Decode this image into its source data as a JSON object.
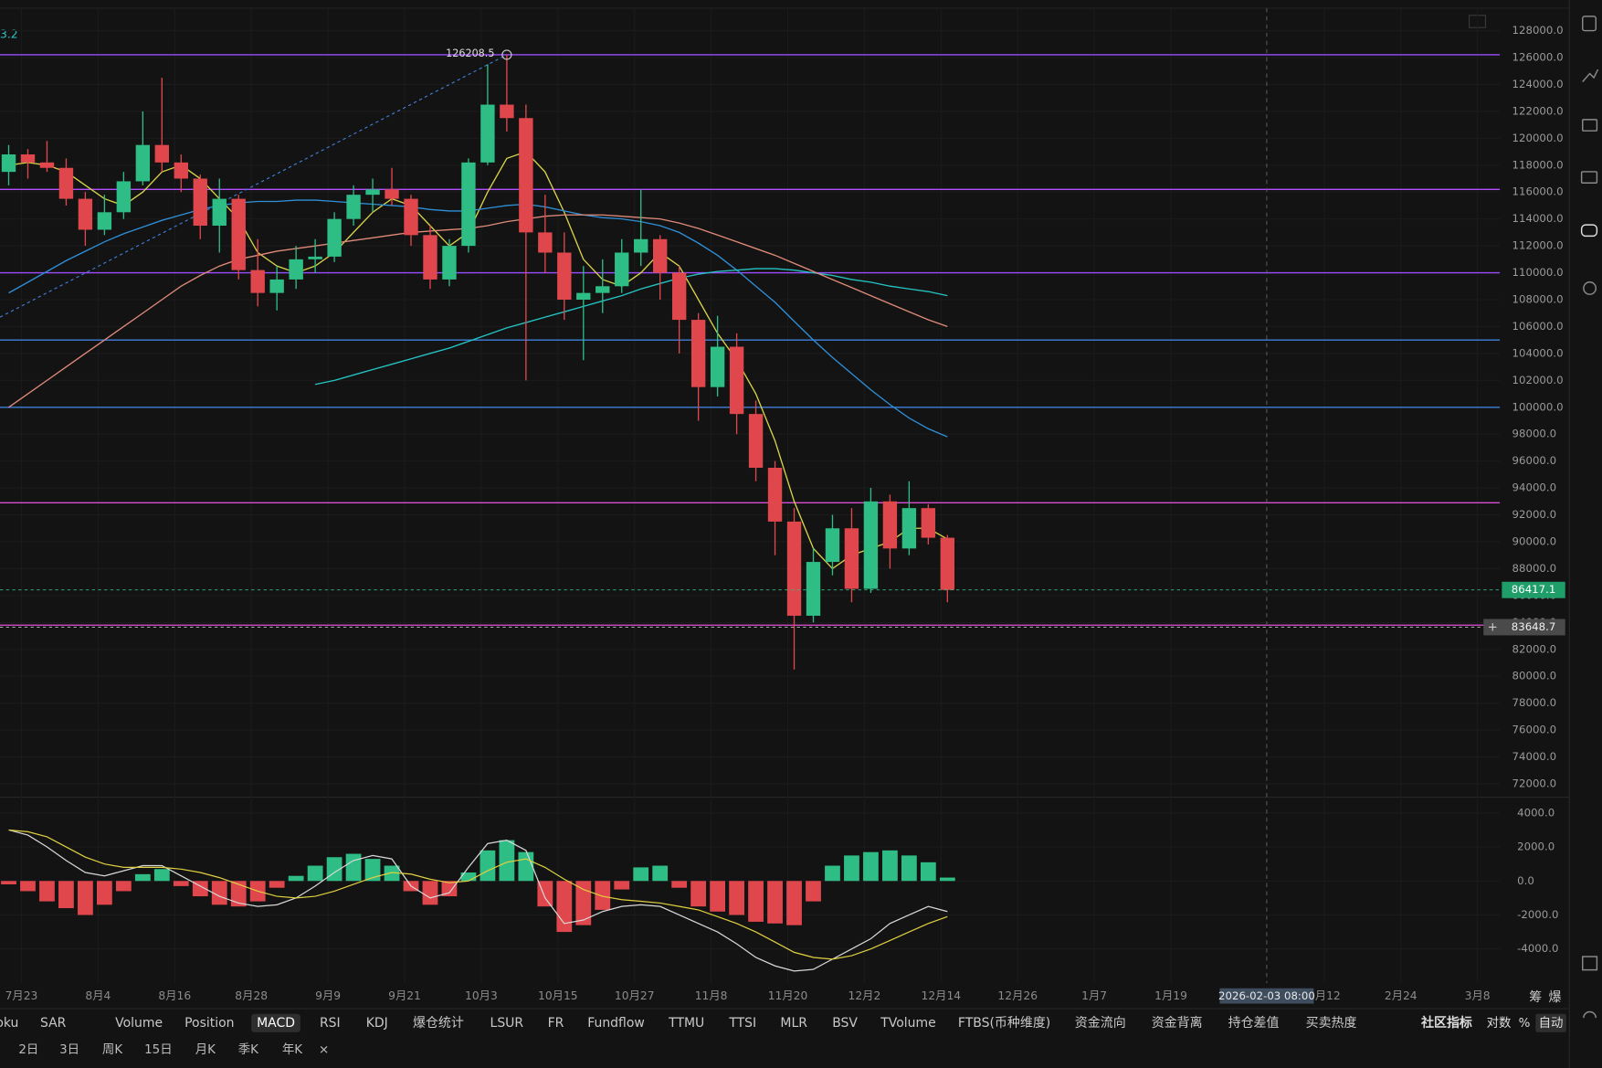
{
  "chart_data": [
    {
      "type": "candlestick",
      "indicator_label": "3.2",
      "x": [
        -2,
        1,
        4,
        7,
        10,
        13,
        16,
        19,
        22,
        25,
        28,
        31,
        34,
        37,
        40,
        43,
        46,
        49,
        52,
        55,
        58,
        61,
        64,
        67,
        70,
        73,
        76,
        79,
        82,
        85,
        88,
        91,
        94,
        97,
        100,
        103,
        106,
        109,
        112,
        115,
        118,
        121,
        124,
        127,
        130,
        133,
        136,
        139,
        142,
        145
      ],
      "open": [
        117500,
        118800,
        118200,
        117800,
        115500,
        113200,
        114500,
        116800,
        119500,
        118200,
        117000,
        113500,
        115500,
        110200,
        108500,
        109500,
        111000,
        111200,
        114000,
        115800,
        116200,
        115500,
        112800,
        109500,
        112000,
        118200,
        122500,
        121500,
        113000,
        111500,
        108000,
        108500,
        109000,
        111500,
        112500,
        110000,
        106500,
        101500,
        104500,
        99500,
        95500,
        91500,
        84500,
        88500,
        91000,
        86500,
        93000,
        89500,
        92500,
        90300
      ],
      "high": [
        119500,
        119200,
        119800,
        118500,
        116000,
        115800,
        117500,
        122000,
        124500,
        118800,
        117300,
        117000,
        115800,
        112500,
        110500,
        112000,
        112500,
        114500,
        116500,
        117000,
        117800,
        115800,
        113500,
        112500,
        118500,
        125500,
        126208.5,
        122500,
        115800,
        113000,
        110500,
        111000,
        112500,
        116200,
        112800,
        110500,
        107000,
        106800,
        105500,
        100500,
        96000,
        92500,
        89500,
        92000,
        92500,
        94000,
        93500,
        94500,
        92800,
        90500
      ],
      "low": [
        116500,
        117000,
        117500,
        115000,
        112000,
        112800,
        114000,
        116500,
        117500,
        116000,
        112500,
        111500,
        109500,
        107500,
        107200,
        108800,
        110000,
        110800,
        113500,
        114500,
        115000,
        112000,
        108800,
        109000,
        111500,
        118000,
        120500,
        102000,
        110000,
        106500,
        103500,
        107000,
        108500,
        110500,
        108000,
        104000,
        99000,
        100800,
        98000,
        94500,
        89000,
        80500,
        84000,
        87500,
        85500,
        86200,
        88000,
        89000,
        89800,
        85500
      ],
      "close": [
        118800,
        118200,
        117800,
        115500,
        113200,
        114500,
        116800,
        119500,
        118200,
        117000,
        113500,
        115500,
        110200,
        108500,
        109500,
        111000,
        111200,
        114000,
        115800,
        116200,
        115500,
        112800,
        109500,
        112000,
        118200,
        122500,
        121500,
        113000,
        111500,
        108000,
        108500,
        109000,
        111500,
        112500,
        110000,
        106500,
        101500,
        104500,
        99500,
        95500,
        91500,
        84500,
        88500,
        91000,
        86500,
        93000,
        89500,
        92500,
        90300,
        86417.1
      ],
      "up_color": "#2ebd85",
      "down_color": "#e0474c",
      "peak_index": 26,
      "moving_averages": [
        {
          "color": "#d8d24a",
          "values": [
            118000,
            118200,
            118000,
            117500,
            116500,
            115500,
            115000,
            116000,
            117500,
            118000,
            117000,
            115500,
            114000,
            111500,
            110500,
            110000,
            110500,
            111500,
            113000,
            114500,
            115500,
            115000,
            113500,
            112000,
            113000,
            116000,
            118500,
            119000,
            117500,
            114500,
            111000,
            109500,
            109000,
            110000,
            111500,
            110500,
            108000,
            105500,
            103500,
            101000,
            97500,
            93000,
            89500,
            88000,
            89000,
            89500,
            90000,
            91000,
            91000,
            90200
          ]
        },
        {
          "color": "#2f8fd6",
          "values": [
            108500,
            109300,
            110100,
            110900,
            111600,
            112300,
            112900,
            113400,
            113900,
            114300,
            114700,
            115000,
            115200,
            115300,
            115300,
            115400,
            115400,
            115300,
            115200,
            115100,
            115000,
            114900,
            114700,
            114600,
            114600,
            114800,
            115000,
            115100,
            114900,
            114600,
            114300,
            114100,
            114000,
            113800,
            113500,
            113000,
            112200,
            111300,
            110200,
            109000,
            107800,
            106400,
            105000,
            103700,
            102500,
            101300,
            100200,
            99200,
            98400,
            97800
          ]
        },
        {
          "color": "#25c4c4",
          "values": [
            null,
            null,
            null,
            null,
            null,
            null,
            null,
            null,
            null,
            null,
            null,
            null,
            null,
            null,
            null,
            null,
            101700,
            102000,
            102400,
            102800,
            103200,
            103600,
            104000,
            104400,
            104900,
            105400,
            105900,
            106300,
            106700,
            107100,
            107500,
            107900,
            108300,
            108800,
            109200,
            109600,
            109900,
            110100,
            110200,
            110300,
            110300,
            110200,
            110000,
            109800,
            109500,
            109300,
            109000,
            108800,
            108600,
            108300
          ]
        },
        {
          "color": "#e08a7a",
          "values": [
            100000,
            101000,
            102000,
            103000,
            104000,
            105000,
            106000,
            107000,
            108000,
            109000,
            109800,
            110500,
            111000,
            111300,
            111600,
            111800,
            112000,
            112200,
            112400,
            112600,
            112800,
            113000,
            113100,
            113200,
            113300,
            113500,
            113800,
            114000,
            114200,
            114300,
            114300,
            114300,
            114200,
            114100,
            114000,
            113700,
            113300,
            112800,
            112300,
            111800,
            111300,
            110700,
            110100,
            109500,
            108900,
            108300,
            107700,
            107100,
            106500,
            106000
          ]
        }
      ],
      "hlines": [
        {
          "value": 126208.5,
          "color": "#9a4dff"
        },
        {
          "value": 116200,
          "color": "#b44dff"
        },
        {
          "value": 110000,
          "color": "#9a4dff"
        },
        {
          "value": 105000,
          "color": "#3f80d9"
        },
        {
          "value": 100000,
          "color": "#3f80d9"
        },
        {
          "value": 92900,
          "color": "#d64fd0"
        },
        {
          "value": 83800,
          "color": "#e055d8"
        }
      ],
      "trendline": {
        "x": [
          -3.36,
          76
        ],
        "y": [
          106700,
          126208.5
        ]
      },
      "crosshair": {
        "x": {
          "value": 195,
          "label": "2026-02-03 08:00"
        },
        "y": 83648.7
      },
      "xlim": [
        -3.36,
        231.5
      ],
      "ylim": [
        71010,
        130280
      ],
      "xticks": [
        {
          "value": 0,
          "label": "7月23"
        },
        {
          "value": 12,
          "label": "8月4"
        },
        {
          "value": 24,
          "label": "8月16"
        },
        {
          "value": 36,
          "label": "8月28"
        },
        {
          "value": 48,
          "label": "9月9"
        },
        {
          "value": 60,
          "label": "9月21"
        },
        {
          "value": 72,
          "label": "10月3"
        },
        {
          "value": 84,
          "label": "10月15"
        },
        {
          "value": 96,
          "label": "10月27"
        },
        {
          "value": 108,
          "label": "11月8"
        },
        {
          "value": 120,
          "label": "11月20"
        },
        {
          "value": 132,
          "label": "12月2"
        },
        {
          "value": 144,
          "label": "12月14"
        },
        {
          "value": 156,
          "label": "12月26"
        },
        {
          "value": 168,
          "label": "1月7"
        },
        {
          "value": 180,
          "label": "1月19"
        },
        {
          "value": 204,
          "label": "2月12"
        },
        {
          "value": 216,
          "label": "2月24"
        },
        {
          "value": 228,
          "label": "3月8"
        }
      ],
      "yticks": [
        {
          "value": 72000,
          "label": "72000.0"
        },
        {
          "value": 74000,
          "label": "74000.0"
        },
        {
          "value": 76000,
          "label": "76000.0"
        },
        {
          "value": 78000,
          "label": "78000.0"
        },
        {
          "value": 80000,
          "label": "80000.0"
        },
        {
          "value": 82000,
          "label": "82000.0"
        },
        {
          "value": 84000,
          "label": "84000.0"
        },
        {
          "value": 86000,
          "label": "86000.0"
        },
        {
          "value": 88000,
          "label": "88000.0"
        },
        {
          "value": 90000,
          "label": "90000.0"
        },
        {
          "value": 92000,
          "label": "92000.0"
        },
        {
          "value": 94000,
          "label": "94000.0"
        },
        {
          "value": 96000,
          "label": "96000.0"
        },
        {
          "value": 98000,
          "label": "98000.0"
        },
        {
          "value": 100000,
          "label": "100000.0"
        },
        {
          "value": 102000,
          "label": "102000.0"
        },
        {
          "value": 104000,
          "label": "104000.0"
        },
        {
          "value": 106000,
          "label": "106000.0"
        },
        {
          "value": 108000,
          "label": "108000.0"
        },
        {
          "value": 110000,
          "label": "110000.0"
        },
        {
          "value": 112000,
          "label": "112000.0"
        },
        {
          "value": 114000,
          "label": "114000.0"
        },
        {
          "value": 116000,
          "label": "116000.0"
        },
        {
          "value": 118000,
          "label": "118000.0"
        },
        {
          "value": 120000,
          "label": "120000.0"
        },
        {
          "value": 122000,
          "label": "122000.0"
        },
        {
          "value": 124000,
          "label": "124000.0"
        },
        {
          "value": 126000,
          "label": "126000.0"
        },
        {
          "value": 128000,
          "label": "128000.0"
        }
      ]
    },
    {
      "type": "macd",
      "x": [
        -2,
        1,
        4,
        7,
        10,
        13,
        16,
        19,
        22,
        25,
        28,
        31,
        34,
        37,
        40,
        43,
        46,
        49,
        52,
        55,
        58,
        61,
        64,
        67,
        70,
        73,
        76,
        79,
        82,
        85,
        88,
        91,
        94,
        97,
        100,
        103,
        106,
        109,
        112,
        115,
        118,
        121,
        124,
        127,
        130,
        133,
        136,
        139,
        142,
        145
      ],
      "histogram": [
        -200,
        -600,
        -1200,
        -1600,
        -2000,
        -1400,
        -600,
        400,
        700,
        -300,
        -900,
        -1400,
        -1500,
        -1200,
        -400,
        300,
        900,
        1400,
        1600,
        1300,
        900,
        -600,
        -1400,
        -900,
        500,
        1800,
        2400,
        1700,
        -1500,
        -3000,
        -2600,
        -1700,
        -500,
        800,
        900,
        -400,
        -1500,
        -1800,
        -2000,
        -2400,
        -2500,
        -2600,
        -1200,
        900,
        1500,
        1700,
        1800,
        1500,
        1100,
        200
      ],
      "dif": [
        3000,
        2700,
        2000,
        1200,
        500,
        300,
        600,
        900,
        900,
        300,
        -300,
        -900,
        -1300,
        -1500,
        -1400,
        -1000,
        -300,
        500,
        1200,
        1500,
        1300,
        -300,
        -1000,
        -700,
        800,
        2200,
        2400,
        1800,
        -1000,
        -2500,
        -2300,
        -1800,
        -1500,
        -1400,
        -1500,
        -2000,
        -2500,
        -3000,
        -3700,
        -4500,
        -5000,
        -5300,
        -5200,
        -4600,
        -4000,
        -3400,
        -2500,
        -2000,
        -1500,
        -1800
      ],
      "dea": [
        3000,
        2900,
        2600,
        2000,
        1400,
        1000,
        800,
        800,
        800,
        700,
        500,
        200,
        -200,
        -600,
        -900,
        -1000,
        -900,
        -600,
        -200,
        200,
        500,
        400,
        100,
        -100,
        0,
        600,
        1100,
        1300,
        800,
        100,
        -500,
        -900,
        -1100,
        -1200,
        -1300,
        -1500,
        -1700,
        -2100,
        -2500,
        -3000,
        -3600,
        -4200,
        -4500,
        -4600,
        -4400,
        -4000,
        -3500,
        -3000,
        -2500,
        -2100
      ],
      "dif_color": "#d8d8d8",
      "dea_color": "#e0d040",
      "up_color": "#2ebd85",
      "down_color": "#e0474c",
      "xlim": [
        -3.36,
        231.5
      ],
      "ylim": [
        -6015,
        4932
      ],
      "yticks": [
        {
          "value": -4000,
          "label": "-4000.0"
        },
        {
          "value": -2000,
          "label": "-2000.0"
        },
        {
          "value": 0,
          "label": "0.0"
        },
        {
          "value": 2000,
          "label": "2000.0"
        },
        {
          "value": 4000,
          "label": "4000.0"
        }
      ]
    }
  ],
  "toolbar": {
    "indicators": [
      "oku",
      "SAR",
      "Volume",
      "Position",
      "MACD",
      "RSI",
      "KDJ",
      "爆仓统计",
      "LSUR",
      "FR",
      "Fundflow",
      "TTMU",
      "TTSI",
      "MLR",
      "BSV",
      "TVolume",
      "FTBS(币种维度)",
      "资金流向",
      "资金背离",
      "持仓差值",
      "买卖热度"
    ],
    "active": "MACD",
    "community": "社区指标",
    "scale": [
      "对数",
      "%",
      "自动"
    ],
    "periods": [
      "2日",
      "3日",
      "周K",
      "15日",
      "月K",
      "季K",
      "年K",
      "×"
    ],
    "axis_tools": [
      "筹",
      "爆"
    ]
  }
}
